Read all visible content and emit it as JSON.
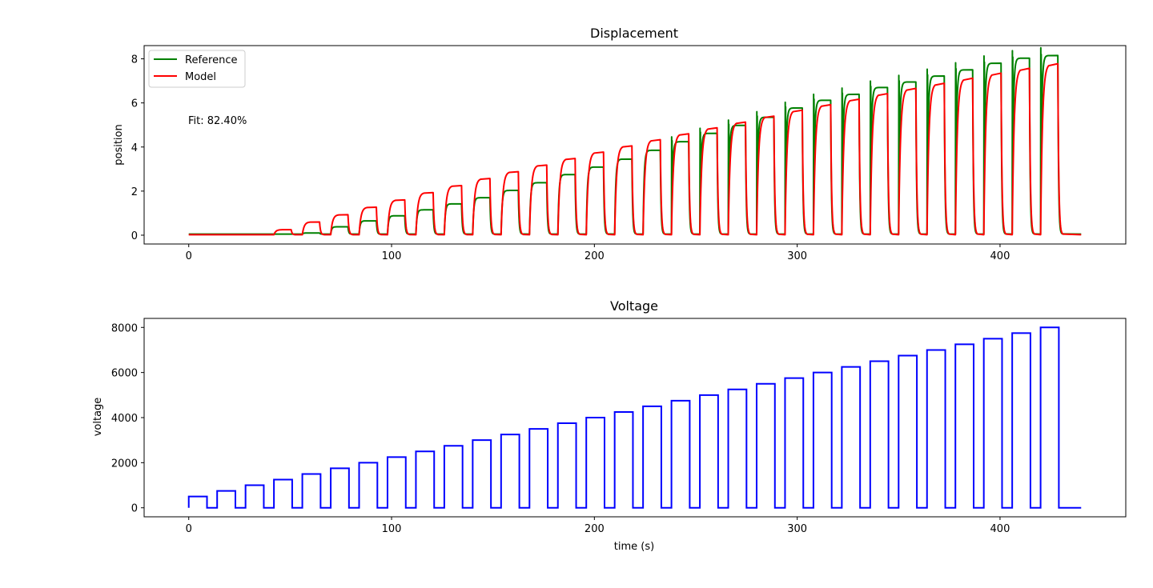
{
  "chart_data": [
    {
      "type": "line",
      "title": "Displacement",
      "xlabel": "",
      "ylabel": "position",
      "xlim": [
        -22,
        462
      ],
      "ylim": [
        -0.4,
        8.6
      ],
      "x_ticks": [
        0,
        100,
        200,
        300,
        400
      ],
      "y_ticks": [
        0,
        2,
        4,
        6,
        8
      ],
      "grid": false,
      "legend_position": "top-left",
      "annotation": "Fit: 82.40%",
      "series": [
        {
          "name": "Reference",
          "color": "#008000",
          "pulse_start": [
            42,
            56,
            70,
            84,
            98,
            112,
            126,
            140,
            154,
            168,
            182,
            196,
            210,
            224,
            238,
            252,
            266,
            280,
            294,
            308,
            322,
            336,
            350,
            364,
            378,
            392,
            406,
            420
          ],
          "pulse_end": [
            50.5,
            64.5,
            78.5,
            92.5,
            106.5,
            120.5,
            134.5,
            148.5,
            162.5,
            176.5,
            190.5,
            204.5,
            218.5,
            232.5,
            246.5,
            260.5,
            274.5,
            288.5,
            302.5,
            316.5,
            330.5,
            344.5,
            358.5,
            372.5,
            386.5,
            400.5,
            414.5,
            428.5
          ],
          "plateau": [
            0.05,
            0.1,
            0.38,
            0.65,
            0.88,
            1.15,
            1.42,
            1.7,
            2.03,
            2.38,
            2.75,
            3.09,
            3.45,
            3.85,
            4.24,
            4.62,
            4.98,
            5.35,
            5.77,
            6.12,
            6.39,
            6.7,
            6.95,
            7.22,
            7.5,
            7.8,
            8.03,
            8.15
          ],
          "baseline": 0.05
        },
        {
          "name": "Model",
          "color": "#ff0000",
          "pulse_start": [
            42,
            56,
            70,
            84,
            98,
            112,
            126,
            140,
            154,
            168,
            182,
            196,
            210,
            224,
            238,
            252,
            266,
            280,
            294,
            308,
            322,
            336,
            350,
            364,
            378,
            392,
            406,
            420
          ],
          "pulse_end": [
            50.5,
            64.5,
            78.5,
            92.5,
            106.5,
            120.5,
            134.5,
            148.5,
            162.5,
            176.5,
            190.5,
            204.5,
            218.5,
            232.5,
            246.5,
            260.5,
            274.5,
            288.5,
            302.5,
            316.5,
            330.5,
            344.5,
            358.5,
            372.5,
            386.5,
            400.5,
            414.5,
            428.5
          ],
          "plateau": [
            0.25,
            0.6,
            0.93,
            1.27,
            1.6,
            1.93,
            2.25,
            2.57,
            2.88,
            3.18,
            3.48,
            3.77,
            4.05,
            4.33,
            4.6,
            4.87,
            5.13,
            5.4,
            5.67,
            5.92,
            6.17,
            6.42,
            6.66,
            6.89,
            7.12,
            7.35,
            7.57,
            7.78
          ],
          "baseline": 0.02
        }
      ]
    },
    {
      "type": "line",
      "title": "Voltage",
      "xlabel": "time (s)",
      "ylabel": "voltage",
      "xlim": [
        -22,
        462
      ],
      "ylim": [
        -400,
        8400
      ],
      "x_ticks": [
        0,
        100,
        200,
        300,
        400
      ],
      "y_ticks": [
        0,
        2000,
        4000,
        6000,
        8000
      ],
      "grid": false,
      "series": [
        {
          "name": "",
          "color": "#0000ff",
          "pulse_start": [
            0,
            14,
            28,
            42,
            56,
            70,
            84,
            98,
            112,
            126,
            140,
            154,
            168,
            182,
            196,
            210,
            224,
            238,
            252,
            266,
            280,
            294,
            308,
            322,
            336,
            350,
            364,
            378,
            392,
            406,
            420
          ],
          "pulse_end": [
            9,
            23,
            37,
            51,
            65,
            79,
            93,
            107,
            121,
            135,
            149,
            163,
            177,
            191,
            205,
            219,
            233,
            247,
            261,
            275,
            289,
            303,
            317,
            331,
            345,
            359,
            373,
            387,
            401,
            415,
            429
          ],
          "level": [
            500,
            750,
            1000,
            1250,
            1500,
            1750,
            2000,
            2250,
            2500,
            2750,
            3000,
            3250,
            3500,
            3750,
            4000,
            4250,
            4500,
            4750,
            5000,
            5250,
            5500,
            5750,
            6000,
            6250,
            6500,
            6750,
            7000,
            7250,
            7500,
            7750,
            8000
          ],
          "end_time": 440
        }
      ]
    }
  ]
}
